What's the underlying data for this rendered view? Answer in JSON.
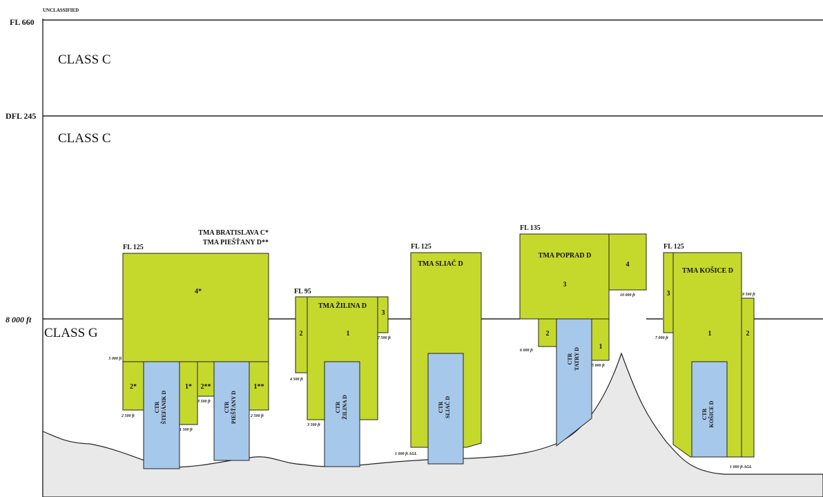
{
  "header": {
    "classification": "UNCLASSIFIED"
  },
  "levels": {
    "fl660": "FL 660",
    "dfl245": "DFL 245",
    "ft8000": "8 000 ft"
  },
  "classes": {
    "upper": "CLASS C",
    "middle": "CLASS C",
    "lower": "CLASS G"
  },
  "bratislava": {
    "title1": "TMA BRATISLAVA C*",
    "title2": "TMA PIEŠŤANY D**",
    "top": "FL 125",
    "sec4": "4*",
    "sec2": "2*",
    "sec1": "1*",
    "sec2b": "2**",
    "sec1b": "1**",
    "alt5000": "5 000 ft",
    "alt2500a": "2 500 ft",
    "alt1500": "1 500 ft",
    "alt3500": "3 500 ft",
    "alt2500b": "2 500 ft",
    "ctr1_a": "CTR",
    "ctr1_b": "ŠTEFÁNIK D",
    "ctr2_a": "CTR",
    "ctr2_b": "PIEŠŤANY D"
  },
  "zilina": {
    "title": "TMA ŽILINA D",
    "top": "FL 95",
    "sec1": "1",
    "sec2": "2",
    "sec3": "3",
    "alt4500": "4 500 ft",
    "alt7500": "7 500 ft",
    "alt3500": "3 500 ft",
    "ctr_a": "CTR",
    "ctr_b": "ŽILINA D"
  },
  "sliac": {
    "title": "TMA SLIAČ D",
    "top": "FL 125",
    "alt1000": "1 000 ft AGL",
    "ctr_a": "CTR",
    "ctr_b": "SLIAČ D"
  },
  "poprad": {
    "title": "TMA POPRAD D",
    "top": "FL 135",
    "sec1": "1",
    "sec2": "2",
    "sec3": "3",
    "sec4": "4",
    "alt10000": "10 000 ft",
    "alt6000": "6 000 ft",
    "alt5000": "5 000 ft",
    "ctr_a": "CTR",
    "ctr_b": "TATRY D"
  },
  "kosice": {
    "title": "TMA KOŠICE D",
    "top": "FL 125",
    "sec1": "1",
    "sec2": "2",
    "sec3": "3",
    "alt9500": "9 500 ft",
    "alt7000": "7 000 ft",
    "alt1000": "1 000 ft AGL",
    "ctr_a": "CTR",
    "ctr_b": "KOŠICE D"
  },
  "colors": {
    "tma": "#c5d92c",
    "ctr": "#a6c8ea",
    "terrain": "#e9e9ea"
  }
}
